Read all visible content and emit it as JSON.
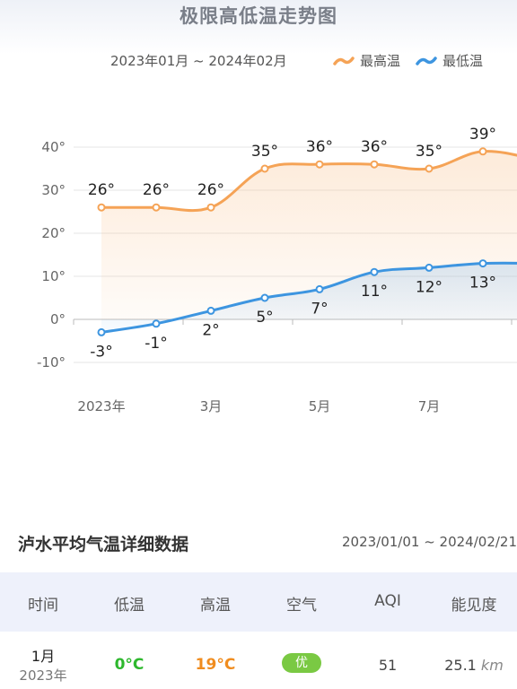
{
  "chart_data": {
    "type": "line",
    "title": "极限高低温走势图",
    "date_range": "2023年01月 ~ 2024年02月",
    "x_ticks": [
      "2023年",
      "3月",
      "5月",
      "7月"
    ],
    "y_ticks": [
      "40°",
      "30°",
      "20°",
      "10°",
      "0°",
      "-10°"
    ],
    "ylim": [
      -10,
      40
    ],
    "legend_position": "top-right",
    "series": [
      {
        "name": "最高温",
        "color": "#f5a356",
        "values": [
          26,
          26,
          26,
          35,
          36,
          36,
          35,
          39,
          37
        ],
        "labels": [
          "26°",
          "26°",
          "26°",
          "35°",
          "36°",
          "36°",
          "35°",
          "39°",
          ""
        ]
      },
      {
        "name": "最低温",
        "color": "#3d95e0",
        "values": [
          -3,
          -1,
          2,
          5,
          7,
          11,
          12,
          13,
          13
        ],
        "labels": [
          "-3°",
          "-1°",
          "2°",
          "5°",
          "7°",
          "11°",
          "12°",
          "13°",
          ""
        ]
      }
    ]
  },
  "section": {
    "title": "泸水平均气温详细数据",
    "range": "2023/01/01 ~ 2024/02/21"
  },
  "table": {
    "headers": [
      "时间",
      "低温",
      "高温",
      "空气",
      "AQI",
      "能见度"
    ],
    "rows": [
      {
        "month": "1月",
        "year": "2023年",
        "low": "0°C",
        "high": "19°C",
        "air": "优",
        "aqi": "51",
        "visibility": "25.1",
        "visibility_unit": "km"
      }
    ]
  }
}
